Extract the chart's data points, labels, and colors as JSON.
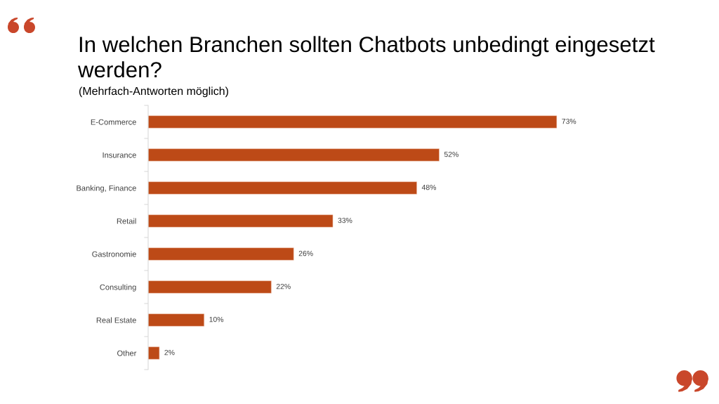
{
  "chart_data": {
    "type": "bar",
    "orientation": "horizontal",
    "title": "In welchen Branchen sollten Chatbots unbedingt eingesetzt werden?",
    "subtitle": "(Mehrfach-Antworten möglich)",
    "categories": [
      "E-Commerce",
      "Insurance",
      "Banking, Finance",
      "Retail",
      "Gastronomie",
      "Consulting",
      "Real Estate",
      "Other"
    ],
    "values": [
      73,
      52,
      48,
      33,
      26,
      22,
      10,
      2
    ],
    "value_labels": [
      "73%",
      "52%",
      "48%",
      "33%",
      "26%",
      "22%",
      "10%",
      "2%"
    ],
    "color": "#bd4a17",
    "tick_labels": "y",
    "grid": false
  }
}
